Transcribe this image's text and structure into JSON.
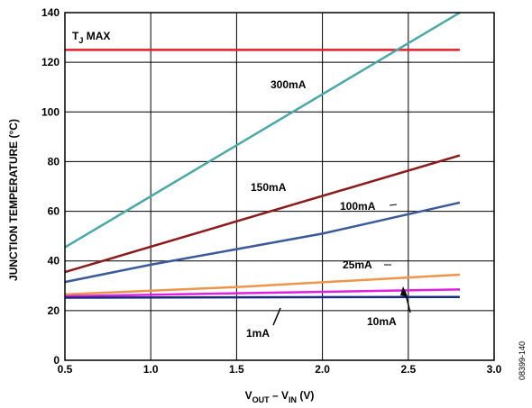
{
  "chart_data": {
    "type": "line",
    "xlabel": {
      "main": "V",
      "sub1": "OUT",
      "mid": " – V",
      "sub2": "IN",
      "unit": " (V)"
    },
    "ylabel": "JUNCTION TEMPERATURE (°C)",
    "xlim": [
      0.5,
      3.0
    ],
    "ylim": [
      0,
      140
    ],
    "xticks": [
      "0.5",
      "1.0",
      "1.5",
      "2.0",
      "2.5",
      "3.0"
    ],
    "yticks": [
      "0",
      "20",
      "40",
      "60",
      "80",
      "100",
      "120",
      "140"
    ],
    "grid": true,
    "tjmax": {
      "label_main": "T",
      "label_sub": "J",
      "label_rest": " MAX",
      "value": 125,
      "color": "#e0202a"
    },
    "series": [
      {
        "name": "300mA",
        "color": "#4aa8a8",
        "x": [
          0.5,
          2.8
        ],
        "y": [
          45.5,
          140
        ]
      },
      {
        "name": "150mA",
        "color": "#8b1a1a",
        "x": [
          0.5,
          2.8
        ],
        "y": [
          35.5,
          82.5
        ]
      },
      {
        "name": "100mA",
        "color": "#3a5a9a",
        "x": [
          0.5,
          1.0,
          2.0,
          2.8
        ],
        "y": [
          31.5,
          38.5,
          51,
          63.5
        ]
      },
      {
        "name": "25mA",
        "color": "#f0944a",
        "x": [
          0.5,
          1.5,
          2.8
        ],
        "y": [
          26.5,
          29.5,
          34.5
        ]
      },
      {
        "name": "10mA",
        "color": "#e020e0",
        "x": [
          0.5,
          2.8
        ],
        "y": [
          25.8,
          28.5
        ]
      },
      {
        "name": "1mA",
        "color": "#1a2a80",
        "x": [
          0.5,
          2.8
        ],
        "y": [
          25.2,
          25.5
        ]
      }
    ],
    "figure_id": "08399-140"
  }
}
